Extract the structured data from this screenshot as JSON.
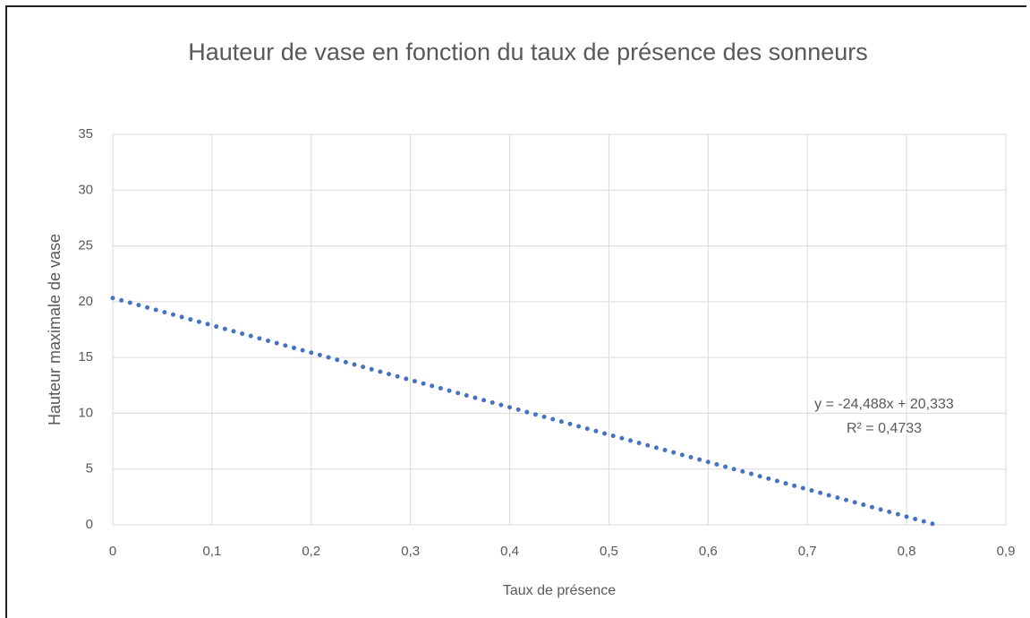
{
  "chart_data": {
    "type": "line",
    "title": "Hauteur de vase en fonction du taux de présence des sonneurs",
    "x_label": "Taux de présence",
    "y_label": "Hauteur maximale de vase",
    "x": [
      0,
      0.83
    ],
    "values": [
      20.333,
      0
    ],
    "color": "#4472c4",
    "line_style": "dotted",
    "xlim": [
      0,
      0.9
    ],
    "xticks": [
      0,
      {
        "value": 0.1,
        "label": "0,1"
      },
      {
        "value": 0.2,
        "label": "0,2"
      },
      {
        "value": 0.3,
        "label": "0,3"
      },
      {
        "value": 0.4,
        "label": "0,4"
      },
      {
        "value": 0.5,
        "label": "0,5"
      },
      {
        "value": 0.6,
        "label": "0,6"
      },
      {
        "value": 0.7,
        "label": "0,7"
      },
      {
        "value": 0.8,
        "label": "0,8"
      },
      {
        "value": 0.9,
        "label": "0,9"
      }
    ],
    "ylim": [
      0,
      35
    ],
    "yticks": [
      0,
      5,
      10,
      15,
      20,
      25,
      30,
      35
    ],
    "grid": true,
    "annotations": [
      "y = -24,488x + 20,333",
      "R² = 0,4733"
    ]
  }
}
